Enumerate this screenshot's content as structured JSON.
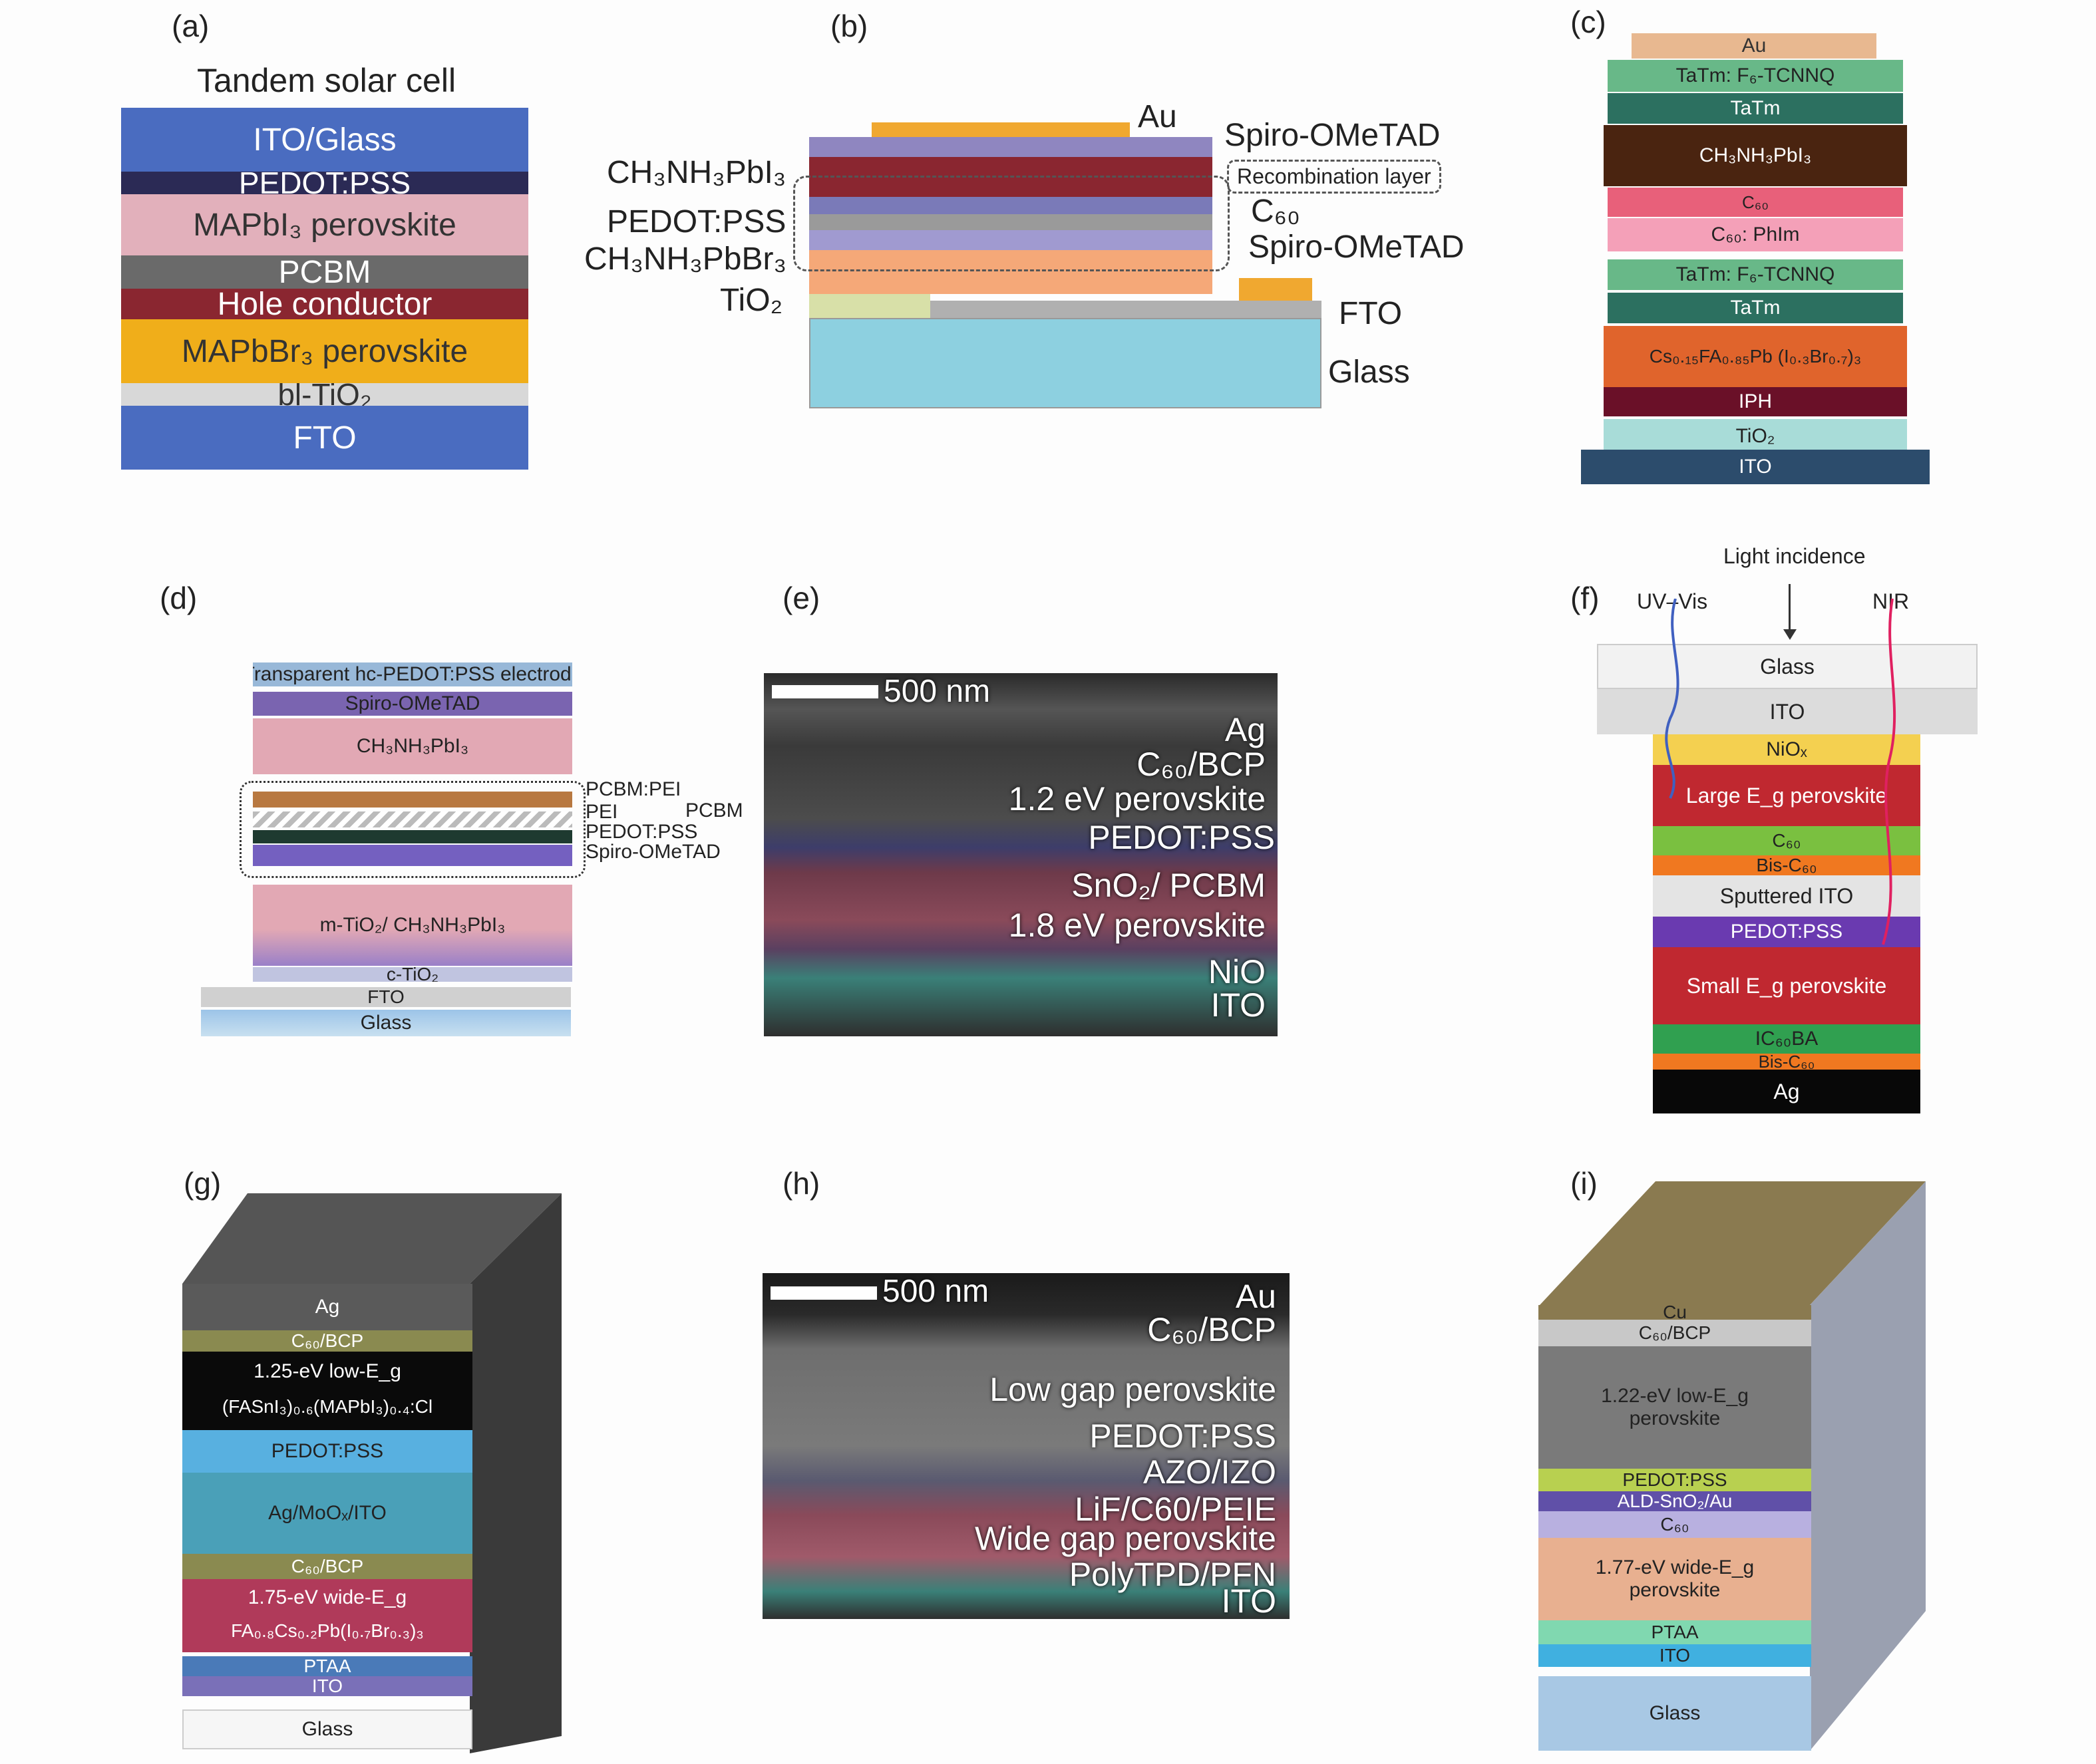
{
  "panels": {
    "a": "(a)",
    "b": "(b)",
    "c": "(c)",
    "d": "(d)",
    "e": "(e)",
    "f": "(f)",
    "g": "(g)",
    "h": "(h)",
    "i": "(i)"
  },
  "a": {
    "title": "Tandem solar cell",
    "layers": [
      "ITO/Glass",
      "PEDOT:PSS",
      "MAPbI₃ perovskite",
      "PCBM",
      "Hole conductor",
      "MAPbBr₃ perovskite",
      "bl-TiO₂",
      "FTO"
    ]
  },
  "b": {
    "left_labels": [
      "CH₃NH₃PbI₃",
      "PEDOT:PSS",
      "CH₃NH₃PbBr₃",
      "TiO₂"
    ],
    "right_labels": [
      "Au",
      "Spiro-OMeTAD",
      "Recombination layer",
      "C₆₀",
      "Spiro-OMeTAD",
      "FTO",
      "Glass"
    ]
  },
  "c": {
    "layers": [
      "Au",
      "TaTm: F₆-TCNNQ",
      "TaTm",
      "CH₃NH₃PbI₃",
      "C₆₀",
      "C₆₀: PhIm",
      "TaTm: F₆-TCNNQ",
      "TaTm",
      "Cs₀.₁₅FA₀.₈₅Pb (I₀.₃Br₀.₇)₃",
      "IPH",
      "TiO₂",
      "ITO"
    ]
  },
  "d": {
    "layers": [
      "Transparent hc-PEDOT:PSS electrode",
      "Spiro-OMeTAD",
      "CH₃NH₃PbI₃",
      "m-TiO₂/ CH₃NH₃PbI₃",
      "c-TiO₂",
      "FTO",
      "Glass"
    ],
    "side_labels": [
      "PCBM:PEI",
      "PEI",
      "PEDOT:PSS",
      "Spiro-OMeTAD"
    ],
    "group_label": "PCBM"
  },
  "e": {
    "scale": "500 nm",
    "labels": [
      "Ag",
      "C₆₀/BCP",
      "1.2 eV perovskite",
      "PEDOT:PSS",
      "SnO₂/ PCBM",
      "1.8 eV perovskite",
      "NiO",
      "ITO"
    ]
  },
  "f": {
    "light": "Light incidence",
    "uv": "UV–Vis",
    "nir": "NIR",
    "layers": [
      "Glass",
      "ITO",
      "NiOₓ",
      "Large E_g perovskite",
      "C₆₀",
      "Bis-C₆₀",
      "Sputtered ITO",
      "PEDOT:PSS",
      "Small E_g perovskite",
      "IC₆₀BA",
      "Bis-C₆₀",
      "Ag"
    ]
  },
  "g": {
    "layers": [
      "Ag",
      "C₆₀/BCP",
      "1.25-eV low-E_g",
      "(FASnI₃)₀.₆(MAPbI₃)₀.₄:Cl",
      "PEDOT:PSS",
      "Ag/MoOₓ/ITO",
      "C₆₀/BCP",
      "1.75-eV wide-E_g",
      "FA₀.₈Cs₀.₂Pb(I₀.₇Br₀.₃)₃",
      "PTAA",
      "ITO",
      "Glass"
    ]
  },
  "h": {
    "scale": "500 nm",
    "labels": [
      "Au",
      "C₆₀/BCP",
      "Low gap perovskite",
      "PEDOT:PSS",
      "AZO/IZO",
      "LiF/C60/PEIE",
      "Wide gap perovskite",
      "PolyTPD/PFN",
      "ITO"
    ]
  },
  "i": {
    "layers": [
      "Cu",
      "C₆₀/BCP",
      "1.22-eV low-E_g",
      "perovskite",
      "PEDOT:PSS",
      "ALD-SnO₂/Au",
      "C₆₀",
      "1.77-eV wide-E_g",
      "perovskite",
      "PTAA",
      "ITO",
      "Glass"
    ]
  },
  "colors": {
    "blue": "#4a6cc0",
    "navy": "#2b2a55",
    "pink": "#e2b0bb",
    "gray": "#6a6a6a",
    "darkred": "#8a2630",
    "orange": "#f0ae1a",
    "lightgray": "#d8d8d8"
  }
}
